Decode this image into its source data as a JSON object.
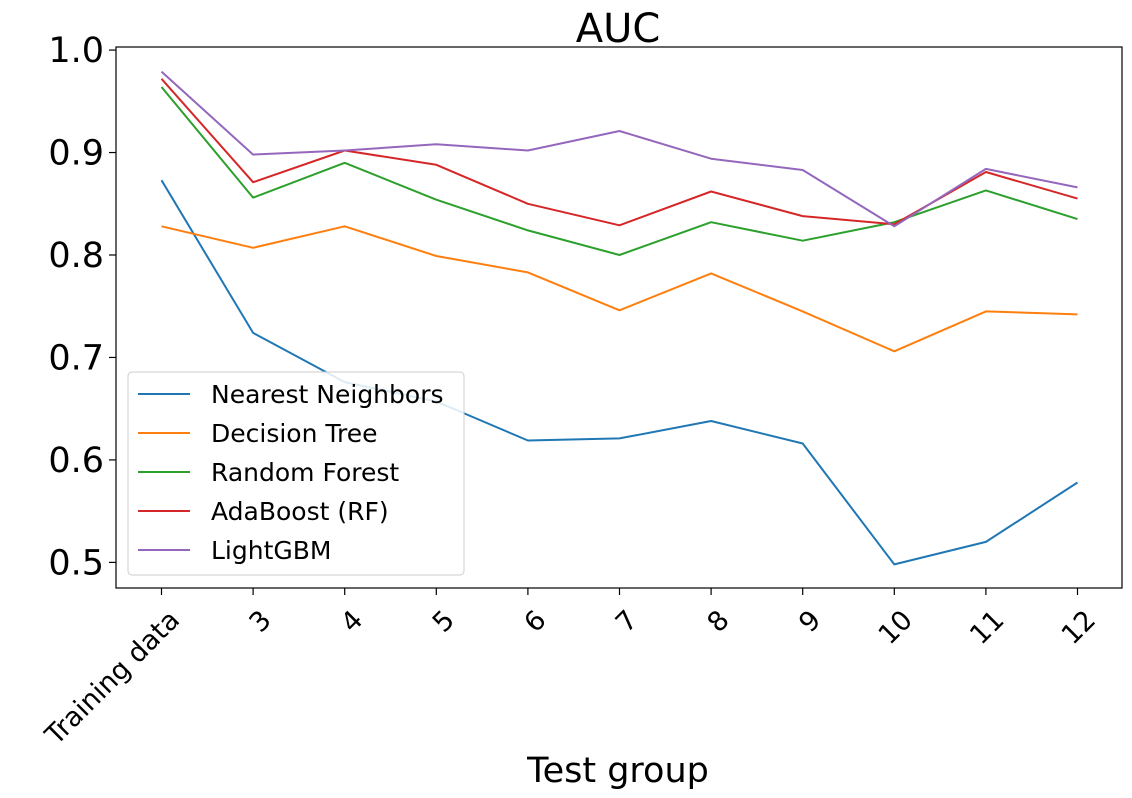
{
  "chart_data": {
    "type": "line",
    "title": "AUC",
    "xlabel": "Test group",
    "ylabel": "",
    "categories": [
      "Training data",
      "3",
      "4",
      "5",
      "6",
      "7",
      "8",
      "9",
      "10",
      "11",
      "12"
    ],
    "ylim": [
      0.475,
      1.003
    ],
    "yticks": [
      "0.5",
      "0.6",
      "0.7",
      "0.8",
      "0.9",
      "1.0"
    ],
    "grid": false,
    "legend_position": "lower-left",
    "series": [
      {
        "name": "Nearest Neighbors",
        "color": "#1f77b4",
        "values": [
          0.873,
          0.724,
          0.676,
          0.657,
          0.619,
          0.621,
          0.638,
          0.616,
          0.498,
          0.52,
          0.578
        ]
      },
      {
        "name": "Decision Tree",
        "color": "#ff7f0e",
        "values": [
          0.828,
          0.807,
          0.828,
          0.799,
          0.783,
          0.746,
          0.782,
          0.745,
          0.706,
          0.745,
          0.742
        ]
      },
      {
        "name": "Random Forest",
        "color": "#2ca02c",
        "values": [
          0.964,
          0.856,
          0.89,
          0.854,
          0.824,
          0.8,
          0.832,
          0.814,
          0.832,
          0.863,
          0.835
        ]
      },
      {
        "name": "AdaBoost (RF)",
        "color": "#d62728",
        "values": [
          0.972,
          0.871,
          0.902,
          0.888,
          0.85,
          0.829,
          0.862,
          0.838,
          0.83,
          0.881,
          0.855
        ]
      },
      {
        "name": "LightGBM",
        "color": "#9467bd",
        "values": [
          0.979,
          0.898,
          0.902,
          0.908,
          0.902,
          0.921,
          0.894,
          0.883,
          0.828,
          0.884,
          0.866
        ]
      }
    ]
  }
}
